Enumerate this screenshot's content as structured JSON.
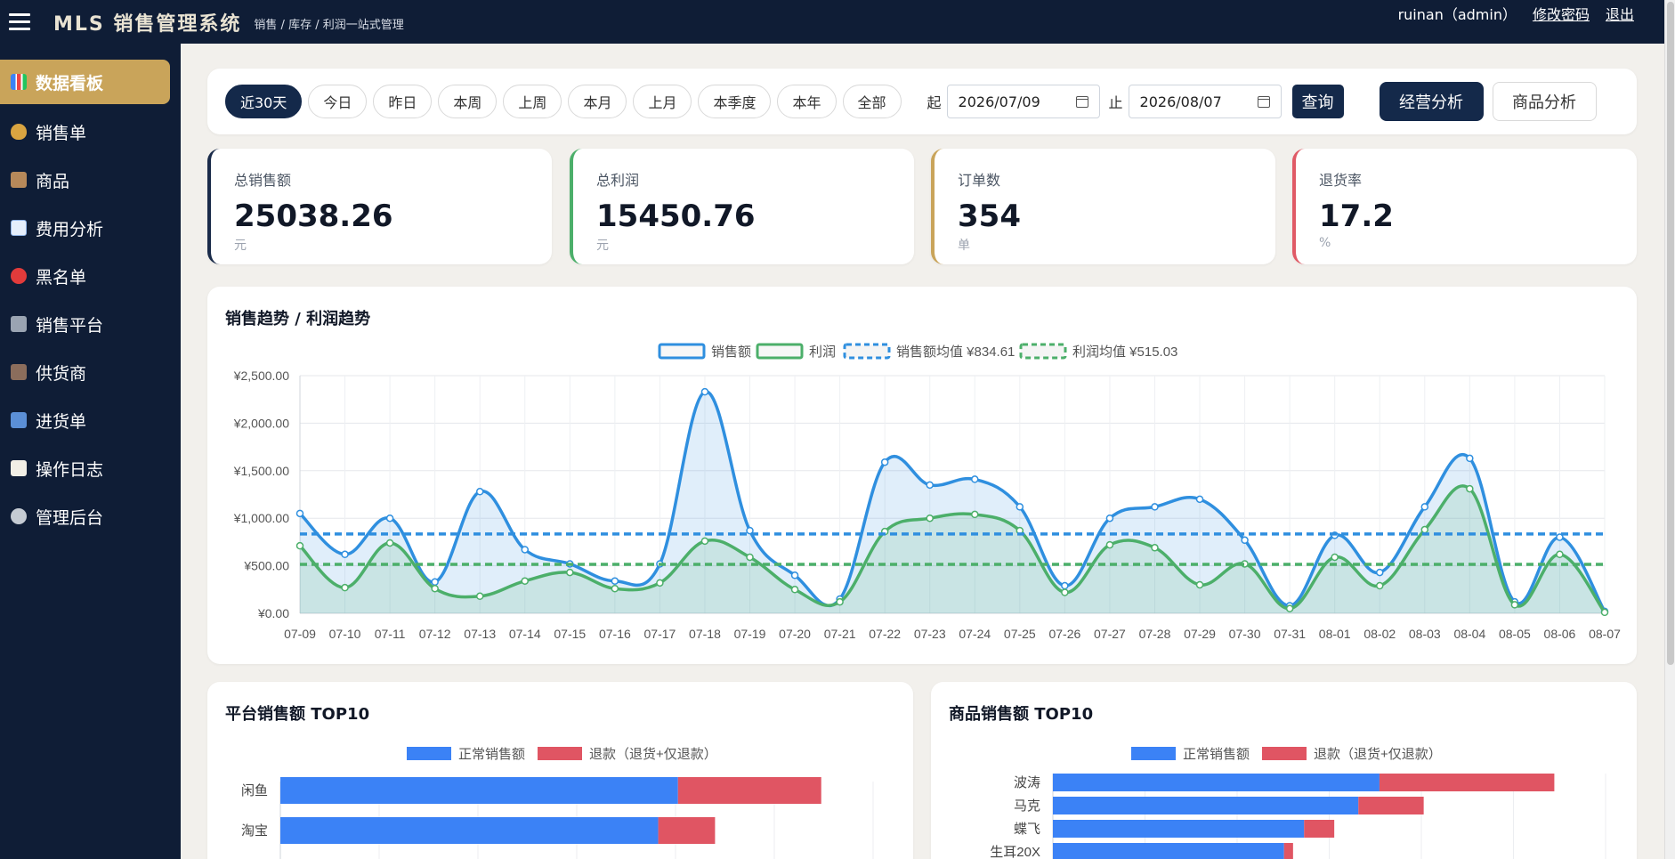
{
  "header": {
    "brand": "MLS 销售管理系统",
    "tagline": "销售 / 库存 / 利润一站式管理",
    "user": "ruinan（admin）",
    "change_password": "修改密码",
    "logout": "退出"
  },
  "sidebar": {
    "items": [
      {
        "label": "数据看板",
        "icon": "bar-chart-icon",
        "active": true
      },
      {
        "label": "销售单",
        "icon": "money-bag-icon"
      },
      {
        "label": "商品",
        "icon": "package-icon"
      },
      {
        "label": "费用分析",
        "icon": "trend-chart-icon"
      },
      {
        "label": "黑名单",
        "icon": "no-entry-icon"
      },
      {
        "label": "销售平台",
        "icon": "cash-register-icon"
      },
      {
        "label": "供货商",
        "icon": "factory-icon"
      },
      {
        "label": "进货单",
        "icon": "inbox-icon"
      },
      {
        "label": "操作日志",
        "icon": "notepad-icon"
      },
      {
        "label": "管理后台",
        "icon": "gear-icon"
      }
    ]
  },
  "filter": {
    "ranges": [
      "近30天",
      "今日",
      "昨日",
      "本周",
      "上周",
      "本月",
      "上月",
      "本季度",
      "本年",
      "全部"
    ],
    "active_range": "近30天",
    "start_label": "起",
    "start_date": "2026/07/09",
    "end_label": "止",
    "end_date": "2026/08/07",
    "query_button": "查询",
    "business_analysis": "经营分析",
    "product_analysis": "商品分析"
  },
  "kpis": [
    {
      "title": "总销售额",
      "value": "25038.26",
      "unit": "元",
      "color": "#1a2b4a"
    },
    {
      "title": "总利润",
      "value": "15450.76",
      "unit": "元",
      "color": "#4caf6a"
    },
    {
      "title": "订单数",
      "value": "354",
      "unit": "单",
      "color": "#c9a45a"
    },
    {
      "title": "退货率",
      "value": "17.2",
      "unit": "%",
      "color": "#e05a66"
    }
  ],
  "chart_data": [
    {
      "type": "line",
      "title": "销售趋势 / 利润趋势",
      "x": [
        "07-09",
        "07-10",
        "07-11",
        "07-12",
        "07-13",
        "07-14",
        "07-15",
        "07-16",
        "07-17",
        "07-18",
        "07-19",
        "07-20",
        "07-21",
        "07-22",
        "07-23",
        "07-24",
        "07-25",
        "07-26",
        "07-27",
        "07-28",
        "07-29",
        "07-30",
        "07-31",
        "08-01",
        "08-02",
        "08-03",
        "08-04",
        "08-05",
        "08-06",
        "08-07"
      ],
      "yticks": [
        "¥0.00",
        "¥500.00",
        "¥1,000.00",
        "¥1,500.00",
        "¥2,000.00",
        "¥2,500.00"
      ],
      "ylim": [
        0,
        2500
      ],
      "series": [
        {
          "name": "销售额",
          "color": "#2f8fdf",
          "values": [
            1050,
            620,
            1000,
            330,
            1280,
            670,
            520,
            340,
            520,
            2330,
            870,
            400,
            150,
            1590,
            1350,
            1410,
            1120,
            290,
            1000,
            1120,
            1200,
            770,
            80,
            820,
            430,
            1120,
            1630,
            120,
            800,
            20
          ]
        },
        {
          "name": "利润",
          "color": "#4caf6a",
          "values": [
            710,
            270,
            740,
            260,
            180,
            340,
            430,
            260,
            320,
            760,
            590,
            250,
            120,
            860,
            1000,
            1040,
            870,
            220,
            720,
            690,
            300,
            520,
            50,
            590,
            290,
            880,
            1310,
            90,
            620,
            10
          ]
        }
      ],
      "averages": [
        {
          "name": "销售额均值 ¥834.61",
          "value": 834.61,
          "color": "#2f8fdf"
        },
        {
          "name": "利润均值 ¥515.03",
          "value": 515.03,
          "color": "#4caf6a"
        }
      ],
      "grid": true,
      "legend": "top"
    },
    {
      "type": "bar",
      "title": "平台销售额 TOP10",
      "orientation": "horizontal",
      "stacked": true,
      "categories": [
        "闲鱼",
        "淘宝"
      ],
      "series": [
        {
          "name": "正常销售额",
          "color": "#3b82f6",
          "values": [
            8050,
            7650
          ]
        },
        {
          "name": "退款（退货+仅退款）",
          "color": "#e05563",
          "values": [
            2900,
            1150
          ]
        }
      ],
      "xlim": [
        0,
        12000
      ],
      "legend": "top"
    },
    {
      "type": "bar",
      "title": "商品销售额 TOP10",
      "orientation": "horizontal",
      "stacked": true,
      "categories": [
        "波涛",
        "马克",
        "蝶飞",
        "生耳20X"
      ],
      "series": [
        {
          "name": "正常销售额",
          "color": "#3b82f6",
          "values": [
            3250,
            3040,
            2500,
            2300
          ]
        },
        {
          "name": "退款（退货+仅退款）",
          "color": "#e05563",
          "values": [
            1740,
            650,
            300,
            90
          ]
        }
      ],
      "xlim": [
        0,
        5500
      ],
      "legend": "top"
    }
  ]
}
